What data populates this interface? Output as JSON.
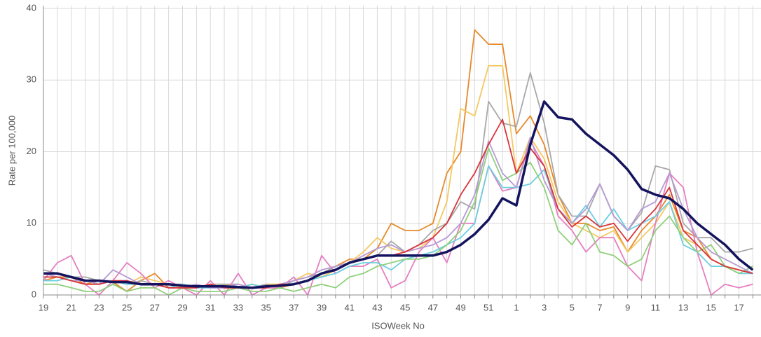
{
  "chart_data": {
    "type": "line",
    "x_label": "ISOWeek No",
    "y_label": "Rate per 100,000",
    "categories": [
      "19",
      null,
      "21",
      null,
      "23",
      null,
      "25",
      null,
      "27",
      null,
      "29",
      null,
      "31",
      null,
      "33",
      null,
      "35",
      null,
      "37",
      null,
      "39",
      null,
      "41",
      null,
      "43",
      null,
      "45",
      null,
      "47",
      null,
      "49",
      null,
      "51",
      null,
      "1",
      null,
      "3",
      null,
      "5",
      null,
      "7",
      null,
      "9",
      null,
      "11",
      null,
      "13",
      null,
      "15",
      null,
      "17",
      null
    ],
    "ylim": [
      0,
      40
    ],
    "yticks": [
      0,
      10,
      20,
      30,
      40
    ],
    "grid": true,
    "series": [
      {
        "color": "#e8892a",
        "values": [
          2,
          2.5,
          2.5,
          1.5,
          2,
          1.8,
          0.5,
          2,
          3,
          1,
          1.5,
          1,
          1.5,
          1,
          1,
          1.5,
          1,
          1,
          1.5,
          2,
          3,
          4,
          5,
          5,
          6.5,
          10,
          9,
          9,
          10,
          17,
          20,
          37,
          35,
          35,
          22.5,
          25,
          21,
          14,
          10,
          10,
          9,
          9.5,
          6,
          9,
          11,
          14,
          9,
          8,
          5,
          4,
          3.5,
          3
        ]
      },
      {
        "color": "#f5c860",
        "values": [
          2.5,
          2.5,
          2,
          1.5,
          1.5,
          2,
          1.5,
          2.5,
          2,
          1.5,
          1,
          1.5,
          1,
          1.5,
          1,
          1,
          1.5,
          1.5,
          2,
          3,
          2.5,
          3.5,
          4.5,
          6,
          8,
          6.5,
          6,
          6.5,
          8,
          13,
          26,
          25,
          32,
          32,
          17,
          22,
          19,
          13,
          10,
          9,
          8,
          9,
          6,
          8,
          10,
          13,
          8,
          7,
          5,
          4,
          3.5,
          3
        ]
      },
      {
        "color": "#a8a8a8",
        "values": [
          3.5,
          3,
          2.5,
          2.5,
          2,
          2,
          1.5,
          2,
          1.5,
          1.5,
          1.5,
          1,
          1.5,
          1.5,
          1.5,
          1,
          1.5,
          1,
          2,
          2.5,
          3,
          4,
          4.5,
          5,
          5.5,
          7.5,
          6,
          7,
          9,
          10,
          13,
          12,
          27,
          24,
          23.5,
          31,
          24,
          14,
          11,
          11,
          15.5,
          11,
          9,
          11.5,
          18,
          17.5,
          10,
          8,
          8,
          6,
          6,
          6.5
        ]
      },
      {
        "color": "#e57fc1",
        "values": [
          2,
          4.5,
          5.5,
          1.5,
          0,
          2,
          4.5,
          3,
          1,
          2,
          1,
          0,
          2,
          0,
          3,
          0,
          1,
          1,
          2.5,
          0,
          5.5,
          3,
          4,
          4,
          5,
          1,
          2,
          6,
          8,
          4.5,
          10,
          10,
          18,
          14.5,
          15,
          21.5,
          18,
          11,
          9,
          6,
          8,
          8,
          4,
          2,
          10,
          17,
          15,
          6,
          0,
          1.5,
          1,
          1.5
        ]
      },
      {
        "color": "#6ccfe0",
        "values": [
          2,
          2,
          2.5,
          2,
          1.5,
          2,
          1.5,
          1.5,
          1.5,
          1,
          1.5,
          1,
          1,
          1,
          1,
          1.5,
          1,
          1.5,
          1.5,
          2,
          2.5,
          3,
          4,
          4.5,
          4.5,
          3.5,
          5,
          5.5,
          6,
          7,
          8,
          10,
          18,
          15,
          15,
          15.5,
          17.5,
          12,
          10,
          12.5,
          9.5,
          12,
          9,
          10,
          11,
          13,
          7,
          6,
          4,
          4,
          3,
          3
        ]
      },
      {
        "color": "#8fd07a",
        "values": [
          1.5,
          1.5,
          1,
          0.5,
          0.5,
          1.5,
          0.5,
          1,
          1,
          0,
          1,
          0.5,
          0.5,
          0.5,
          1,
          0.5,
          0.5,
          1,
          0.5,
          1,
          1.5,
          1,
          2.5,
          3,
          4,
          4.5,
          5,
          5,
          5.5,
          7,
          9,
          13,
          20.5,
          16,
          17,
          18.5,
          15,
          9,
          7,
          10,
          6,
          5.5,
          4,
          5,
          9,
          11,
          8,
          6,
          7,
          4,
          3,
          4
        ]
      },
      {
        "color": "#b79ad4",
        "values": [
          3,
          2.5,
          2,
          2,
          1.5,
          3.5,
          2.5,
          1.5,
          1.5,
          1,
          1,
          1.5,
          1,
          1,
          1.5,
          1,
          1,
          1.5,
          2,
          2.5,
          3.5,
          4,
          4.5,
          5.5,
          6.5,
          7,
          6,
          6.5,
          7,
          8,
          10,
          14,
          21.5,
          17,
          15,
          22,
          16,
          12,
          10,
          12,
          15.5,
          11,
          9,
          12,
          13,
          17,
          12,
          8,
          6,
          5,
          4,
          3
        ]
      },
      {
        "color": "#d9343a",
        "values": [
          2.5,
          2.5,
          2,
          1.5,
          1.5,
          2,
          2,
          1.5,
          1.5,
          1,
          1,
          1,
          1.5,
          1,
          1,
          1,
          1,
          1.5,
          1.5,
          2,
          3,
          3.5,
          4.5,
          5,
          5.5,
          5.5,
          6,
          7,
          8,
          10,
          14,
          17,
          21,
          24.5,
          17,
          20.5,
          18,
          12,
          9.5,
          11,
          9.5,
          10,
          7.5,
          10,
          12,
          15,
          9,
          7,
          5,
          4,
          3.5,
          3
        ]
      },
      {
        "color": "#14145e",
        "width": 3.5,
        "values": [
          3,
          3,
          2.5,
          2,
          2,
          1.8,
          1.8,
          1.5,
          1.5,
          1.5,
          1.3,
          1.2,
          1.2,
          1.2,
          1.1,
          1,
          1.2,
          1.3,
          1.5,
          2,
          3,
          3.5,
          4.5,
          5,
          5.5,
          5.5,
          5.5,
          5.5,
          5.5,
          6,
          7,
          8.5,
          10.5,
          13.5,
          12.5,
          21,
          27,
          24.8,
          24.5,
          22.5,
          21,
          19.5,
          17.5,
          14.8,
          14,
          13.5,
          12,
          10,
          8.5,
          7,
          5,
          3.5
        ]
      }
    ]
  }
}
